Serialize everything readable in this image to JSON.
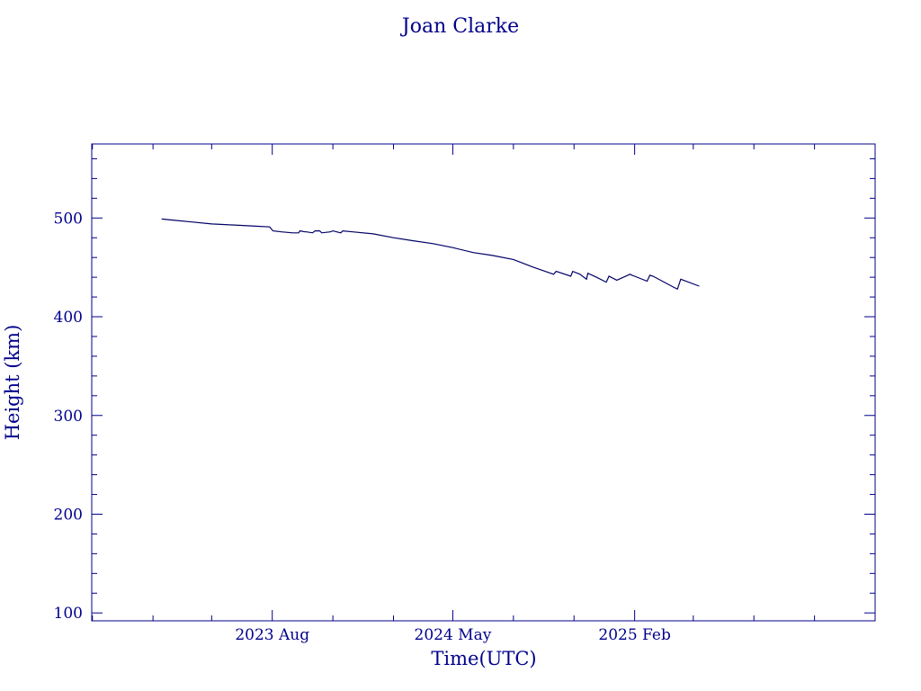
{
  "chart_data": {
    "type": "line",
    "title": "Joan Clarke",
    "xlabel": "Time(UTC)",
    "ylabel": "Height (km)",
    "x_tick_labels": [
      {
        "label": "2023 Aug",
        "date": "2023-08-01"
      },
      {
        "label": "2024 May",
        "date": "2024-05-01"
      },
      {
        "label": "2025 Feb",
        "date": "2025-02-01"
      }
    ],
    "y_ticks": [
      100,
      200,
      300,
      400,
      500
    ],
    "xlim": [
      "2022-10-31",
      "2026-02-01"
    ],
    "ylim": [
      92,
      575
    ],
    "grid": false,
    "colors": {
      "axes": "#00008b",
      "line": "#000066",
      "text": "#00008b"
    },
    "series": [
      {
        "x": [
          "2023-02-14",
          "2023-03-01",
          "2023-04-01",
          "2023-05-01",
          "2023-06-01",
          "2023-07-01",
          "2023-07-28",
          "2023-08-02",
          "2023-08-15",
          "2023-09-01",
          "2023-09-10",
          "2023-09-12",
          "2023-09-20",
          "2023-09-22",
          "2023-10-01",
          "2023-10-05",
          "2023-10-12",
          "2023-10-15",
          "2023-10-28",
          "2023-11-01",
          "2023-11-13",
          "2023-11-16",
          "2023-12-01",
          "2024-01-01",
          "2024-02-01",
          "2024-03-01",
          "2024-04-01",
          "2024-05-01",
          "2024-06-01",
          "2024-07-01",
          "2024-08-01",
          "2024-09-01",
          "2024-10-01",
          "2024-10-05",
          "2024-10-27",
          "2024-10-30",
          "2024-11-10",
          "2024-11-20",
          "2024-11-22",
          "2024-12-05",
          "2024-12-20",
          "2024-12-24",
          "2025-01-05",
          "2025-01-25",
          "2025-01-28",
          "2025-02-01",
          "2025-02-20",
          "2025-02-24",
          "2025-03-01",
          "2025-04-01",
          "2025-04-07",
          "2025-04-12",
          "2025-04-16",
          "2025-05-10"
        ],
        "y": [
          499,
          498,
          496,
          494,
          493,
          492,
          491,
          487,
          486,
          485,
          485,
          487,
          486,
          486,
          485,
          487,
          487,
          485,
          486,
          487,
          485,
          487,
          486,
          484,
          480,
          477,
          474,
          470,
          465,
          462,
          458,
          450,
          443,
          446,
          441,
          446,
          443,
          438,
          444,
          440,
          435,
          441,
          437,
          443,
          442,
          441,
          436,
          442,
          441,
          430,
          428,
          438,
          437,
          431
        ]
      }
    ]
  }
}
